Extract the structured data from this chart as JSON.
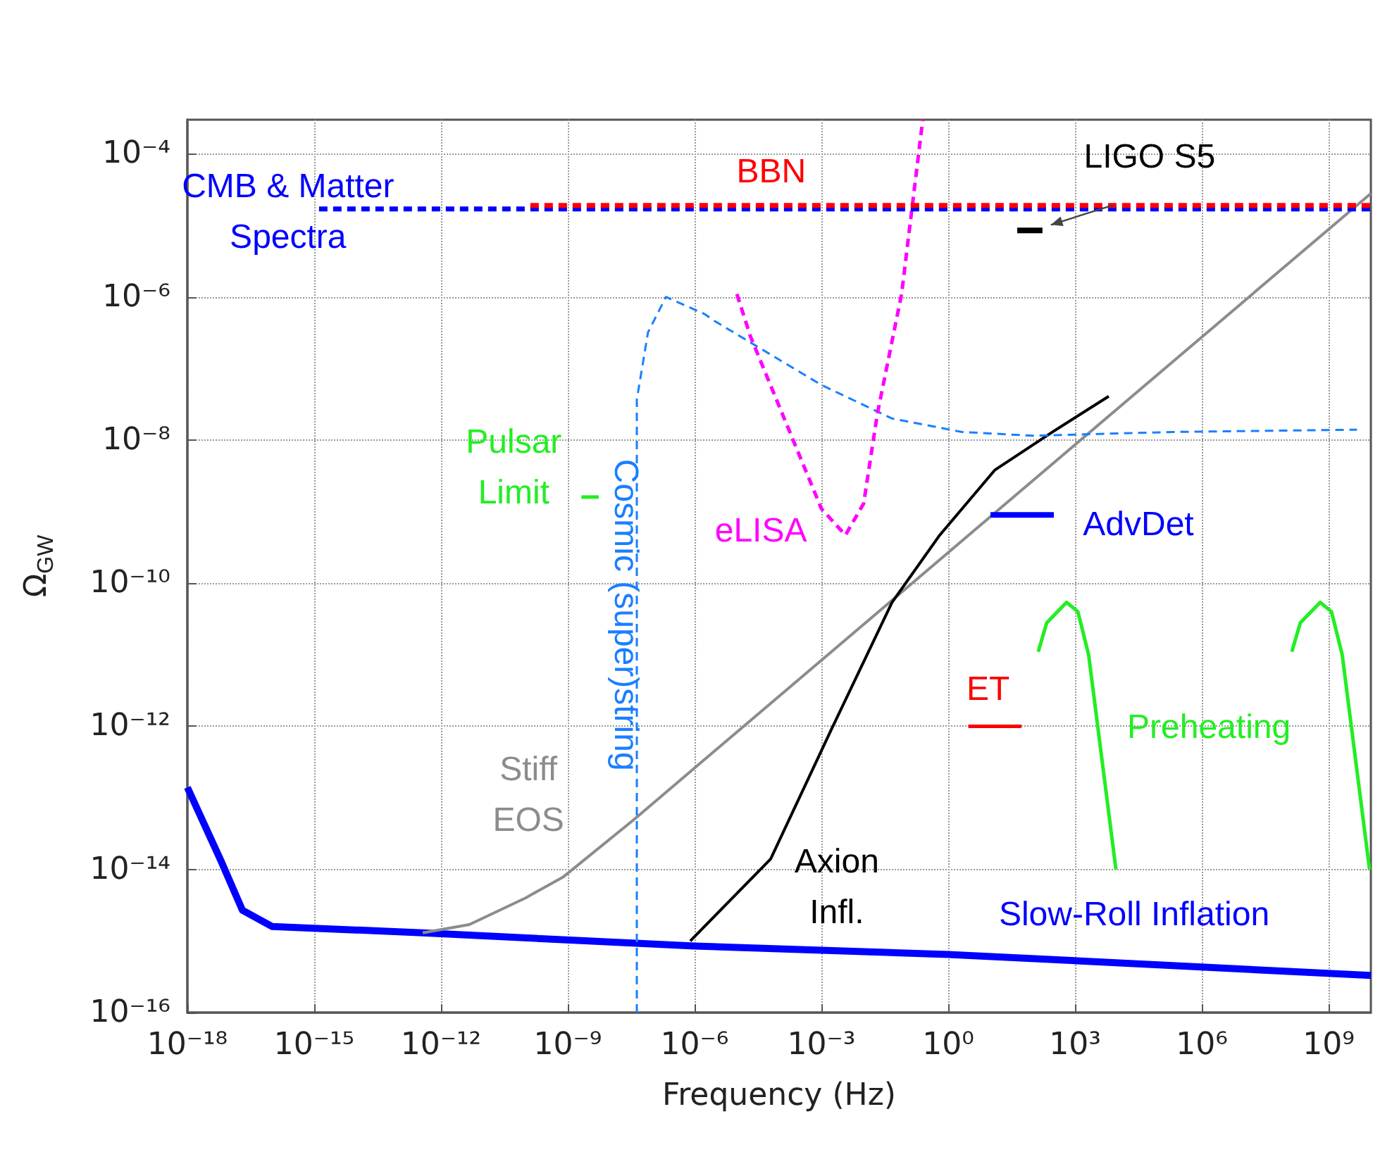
{
  "chart_data": {
    "type": "line",
    "xlabel": "Frequency (Hz)",
    "ylabel": "Ω$_{GW}$",
    "log": "xy",
    "grid": true,
    "legend": false,
    "xlim": [
      1e-18,
      10000000000.0
    ],
    "ylim": [
      1e-16,
      0.0003
    ],
    "xticks": [
      {
        "value": 1e-18,
        "label": "10⁻¹⁸"
      },
      {
        "value": 1e-15,
        "label": "10⁻¹⁵"
      },
      {
        "value": 1e-12,
        "label": "10⁻¹²"
      },
      {
        "value": 1e-09,
        "label": "10⁻⁹"
      },
      {
        "value": 1e-06,
        "label": "10⁻⁶"
      },
      {
        "value": 0.001,
        "label": "10⁻³"
      },
      {
        "value": 1,
        "label": "10⁰"
      },
      {
        "value": 1000.0,
        "label": "10³"
      },
      {
        "value": 1000000.0,
        "label": "10⁶"
      },
      {
        "value": 1000000000.0,
        "label": "10⁹"
      }
    ],
    "yticks": [
      {
        "value": 1e-16,
        "label": "10⁻¹⁶"
      },
      {
        "value": 1e-14,
        "label": "10⁻¹⁴"
      },
      {
        "value": 1e-12,
        "label": "10⁻¹²"
      },
      {
        "value": 1e-10,
        "label": "10⁻¹⁰"
      },
      {
        "value": 1e-08,
        "label": "10⁻⁸"
      },
      {
        "value": 1e-06,
        "label": "10⁻⁶"
      },
      {
        "value": 0.0001,
        "label": "10⁻⁴"
      }
    ],
    "series": [
      {
        "name": "Slow-Roll Inflation",
        "color": "#0000ff",
        "line_style": "solid",
        "x": [
          1e-18,
          6.3e-18,
          2e-17,
          1e-16,
          3.7e-13,
          1e-06,
          1,
          10000000000.0
        ],
        "values": [
          1.4e-13,
          1.3e-14,
          2.7e-15,
          1.6e-15,
          1.3e-15,
          8.5e-16,
          6.5e-16,
          3.3e-16
        ]
      },
      {
        "name": "Stiff\nEOS",
        "color": "#8c8c8c",
        "line_style": "solid",
        "x": [
          3.7e-13,
          4.7e-12,
          1e-10,
          7.9e-10,
          3.7e-08,
          10000000000.0
        ],
        "values": [
          1.3e-15,
          1.7e-15,
          4e-15,
          7.9e-15,
          5e-14,
          2.8e-05
        ]
      },
      {
        "name": "Axion\nInfl.",
        "color": "#000000",
        "line_style": "solid",
        "x": [
          7.9e-07,
          6.3e-05,
          0.0017,
          0.047,
          0.63,
          12.6,
          295,
          6300
        ],
        "values": [
          1e-15,
          1.4e-14,
          8.9e-13,
          5.4e-11,
          4.7e-10,
          3.8e-09,
          1.3e-08,
          4.1e-08
        ]
      },
      {
        "name": "Cosmic (super)string",
        "color": "#1a7fff",
        "line_style": "dashed",
        "x": [
          4.3e-08,
          4.3e-08,
          7.9e-08,
          2.1e-07,
          1.7e-06,
          3e-06,
          0.001,
          0.047,
          2.1,
          100,
          210000.0,
          4700000000.0
        ],
        "values": [
          1e-16,
          3.7e-08,
          3.2e-07,
          1e-06,
          5.8e-07,
          4.6e-07,
          5.9e-08,
          2e-08,
          1.3e-08,
          1.15e-08,
          1.3e-08,
          1.4e-08
        ]
      },
      {
        "name": "eLISA",
        "color": "#ff00ff",
        "line_style": "dashed",
        "x": [
          1e-05,
          2.1e-05,
          0.001,
          0.0037,
          0.01,
          0.021,
          0.079,
          0.25
        ],
        "values": [
          1.1e-06,
          2.8e-07,
          1.1e-09,
          4.7e-10,
          1.3e-09,
          2.3e-08,
          1.1e-06,
          0.0003
        ]
      },
      {
        "name": "CMB & Matter\nSpectra",
        "color": "#0000ff",
        "line_style": "dashed",
        "x": [
          1.3e-15,
          10000000000.0
        ],
        "values": [
          1.7e-05,
          1.7e-05
        ]
      },
      {
        "name": "BBN",
        "color": "#ff0000",
        "line_style": "dashed",
        "x": [
          1.3e-10,
          10000000000.0
        ],
        "values": [
          1.9e-05,
          1.9e-05
        ]
      },
      {
        "name": "LIGO S5",
        "color": "#000000",
        "line_style": "solid",
        "x": [
          43,
          170
        ],
        "values": [
          8.5e-06,
          8.5e-06
        ]
      },
      {
        "name": "Pulsar\nLimit",
        "color": "#22ee22",
        "line_style": "solid",
        "x": [
          2.1e-09,
          5.4e-09
        ],
        "values": [
          1.6e-09,
          1.6e-09
        ]
      },
      {
        "name": "AdvDet",
        "color": "#0000ff",
        "line_style": "solid",
        "x": [
          10,
          316
        ],
        "values": [
          9e-10,
          9e-10
        ]
      },
      {
        "name": "ET",
        "color": "#ff0000",
        "line_style": "solid",
        "x": [
          3,
          54
        ],
        "values": [
          1e-12,
          1e-12
        ]
      },
      {
        "name": "Preheating",
        "color": "#22ee22",
        "line_style": "solid",
        "x": [
          135,
          214,
          630,
          1170,
          2100,
          9300
        ],
        "values": [
          1.1e-11,
          2.8e-11,
          5.4e-11,
          4e-11,
          1e-11,
          1e-14
        ]
      },
      {
        "color": "#22ee22",
        "line_style": "solid",
        "x": [
          135000000.0,
          214000000.0,
          630000000.0,
          1170000000.0,
          2100000000.0,
          9300000000.0
        ],
        "values": [
          1.1e-11,
          2.8e-11,
          5.4e-11,
          4e-11,
          1e-11,
          1e-14
        ]
      }
    ]
  }
}
